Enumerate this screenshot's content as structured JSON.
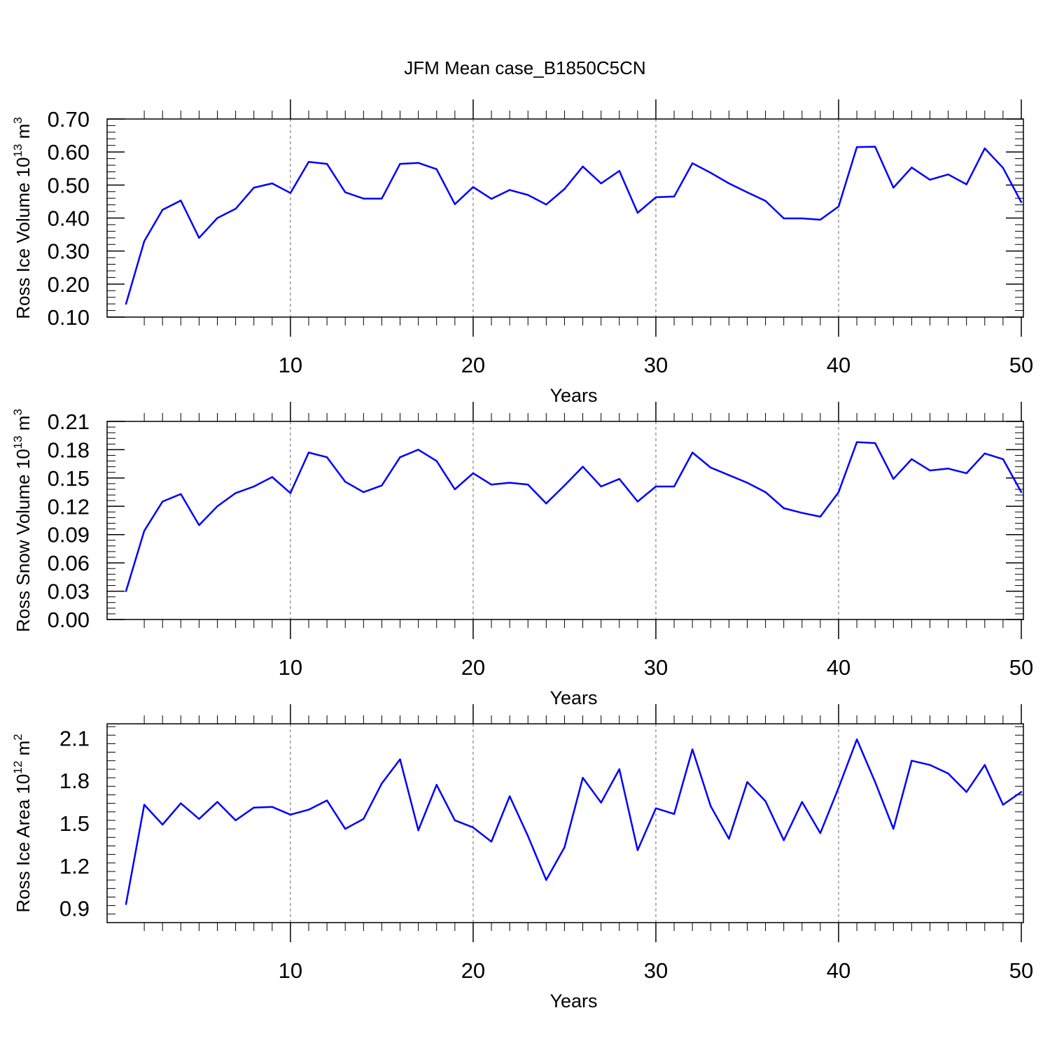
{
  "figure": {
    "title": "JFM Mean case_B1850C5CN"
  },
  "colors": {
    "series": "#0000ff",
    "axes": "#000000",
    "grid": "#666666"
  },
  "chart_data": [
    {
      "type": "line",
      "xlabel": "Years",
      "ylabel": "Ross Ice Volume 10^13 m^3",
      "ylabel_parts": {
        "pre": "Ross Ice Volume 10",
        "exp": "13",
        "mid": " m",
        "unit_exp": "3"
      },
      "xlim": [
        1,
        50
      ],
      "ylim": [
        0.1,
        0.7
      ],
      "xticks": [
        10,
        20,
        30,
        40,
        50
      ],
      "xtick_labels": [
        "10",
        "20",
        "30",
        "40",
        "50"
      ],
      "yticks": [
        0.1,
        0.2,
        0.3,
        0.4,
        0.5,
        0.6,
        0.7
      ],
      "ytick_labels": [
        "0.10",
        "0.20",
        "0.30",
        "0.40",
        "0.50",
        "0.60",
        "0.70"
      ],
      "grid": "vertical dashed at major x ticks",
      "series": [
        {
          "name": "Ross Ice Volume",
          "x": [
            1,
            2,
            3,
            4,
            5,
            6,
            7,
            8,
            9,
            10,
            11,
            12,
            13,
            14,
            15,
            16,
            17,
            18,
            19,
            20,
            21,
            22,
            23,
            24,
            25,
            26,
            27,
            28,
            29,
            30,
            31,
            32,
            33,
            34,
            35,
            36,
            37,
            38,
            39,
            40,
            41,
            42,
            43,
            44,
            45,
            46,
            47,
            48,
            49,
            50
          ],
          "values": [
            0.14,
            0.33,
            0.425,
            0.453,
            0.34,
            0.4,
            0.428,
            0.492,
            0.505,
            0.476,
            0.57,
            0.564,
            0.478,
            0.459,
            0.459,
            0.564,
            0.567,
            0.548,
            0.442,
            0.494,
            0.458,
            0.485,
            0.47,
            0.441,
            0.488,
            0.556,
            0.505,
            0.543,
            0.416,
            0.463,
            0.465,
            0.566,
            0.537,
            0.505,
            0.478,
            0.452,
            0.399,
            0.399,
            0.395,
            0.435,
            0.615,
            0.616,
            0.492,
            0.553,
            0.516,
            0.532,
            0.502,
            0.611,
            0.552,
            0.448
          ]
        }
      ]
    },
    {
      "type": "line",
      "xlabel": "Years",
      "ylabel": "Ross Snow Volume 10^13 m^3",
      "ylabel_parts": {
        "pre": "Ross Snow Volume 10",
        "exp": "13",
        "mid": " m",
        "unit_exp": "3"
      },
      "xlim": [
        1,
        50
      ],
      "ylim": [
        0.0,
        0.21
      ],
      "xticks": [
        10,
        20,
        30,
        40,
        50
      ],
      "xtick_labels": [
        "10",
        "20",
        "30",
        "40",
        "50"
      ],
      "yticks": [
        0.0,
        0.03,
        0.06,
        0.09,
        0.12,
        0.15,
        0.18,
        0.21
      ],
      "ytick_labels": [
        "0.00",
        "0.03",
        "0.06",
        "0.09",
        "0.12",
        "0.15",
        "0.18",
        "0.21"
      ],
      "grid": "vertical dashed at major x ticks",
      "series": [
        {
          "name": "Ross Snow Volume",
          "x": [
            1,
            2,
            3,
            4,
            5,
            6,
            7,
            8,
            9,
            10,
            11,
            12,
            13,
            14,
            15,
            16,
            17,
            18,
            19,
            20,
            21,
            22,
            23,
            24,
            25,
            26,
            27,
            28,
            29,
            30,
            31,
            32,
            33,
            34,
            35,
            36,
            37,
            38,
            39,
            40,
            41,
            42,
            43,
            44,
            45,
            46,
            47,
            48,
            49,
            50
          ],
          "values": [
            0.03,
            0.094,
            0.125,
            0.133,
            0.1,
            0.12,
            0.134,
            0.141,
            0.151,
            0.134,
            0.177,
            0.172,
            0.146,
            0.135,
            0.142,
            0.172,
            0.18,
            0.168,
            0.138,
            0.155,
            0.143,
            0.145,
            0.143,
            0.123,
            0.142,
            0.162,
            0.141,
            0.149,
            0.125,
            0.141,
            0.141,
            0.177,
            0.161,
            0.153,
            0.145,
            0.135,
            0.118,
            0.113,
            0.109,
            0.135,
            0.188,
            0.187,
            0.149,
            0.17,
            0.158,
            0.16,
            0.155,
            0.176,
            0.17,
            0.135
          ]
        }
      ]
    },
    {
      "type": "line",
      "xlabel": "Years",
      "ylabel": "Ross Ice Area 10^12 m^2",
      "ylabel_parts": {
        "pre": "Ross Ice Area 10",
        "exp": "12",
        "mid": " m",
        "unit_exp": "2"
      },
      "xlim": [
        1,
        50
      ],
      "ylim": [
        0.8,
        2.2
      ],
      "xticks": [
        10,
        20,
        30,
        40,
        50
      ],
      "xtick_labels": [
        "10",
        "20",
        "30",
        "40",
        "50"
      ],
      "yticks": [
        0.9,
        1.2,
        1.5,
        1.8,
        2.1
      ],
      "ytick_labels": [
        "0.9",
        "1.2",
        "1.5",
        "1.8",
        "2.1"
      ],
      "grid": "vertical dashed at major x ticks",
      "series": [
        {
          "name": "Ross Ice Area",
          "x": [
            1,
            2,
            3,
            4,
            5,
            6,
            7,
            8,
            9,
            10,
            11,
            12,
            13,
            14,
            15,
            16,
            17,
            18,
            19,
            20,
            21,
            22,
            23,
            24,
            25,
            26,
            27,
            28,
            29,
            30,
            31,
            32,
            33,
            34,
            35,
            36,
            37,
            38,
            39,
            40,
            41,
            42,
            43,
            44,
            45,
            46,
            47,
            48,
            49,
            50
          ],
          "values": [
            0.93,
            1.63,
            1.49,
            1.64,
            1.53,
            1.65,
            1.52,
            1.61,
            1.615,
            1.56,
            1.595,
            1.66,
            1.46,
            1.53,
            1.78,
            1.95,
            1.45,
            1.77,
            1.52,
            1.47,
            1.37,
            1.69,
            1.41,
            1.1,
            1.33,
            1.82,
            1.645,
            1.88,
            1.31,
            1.605,
            1.565,
            2.02,
            1.62,
            1.39,
            1.79,
            1.655,
            1.38,
            1.65,
            1.43,
            1.75,
            2.09,
            1.79,
            1.46,
            1.94,
            1.91,
            1.85,
            1.72,
            1.91,
            1.63,
            1.72
          ]
        }
      ]
    }
  ]
}
